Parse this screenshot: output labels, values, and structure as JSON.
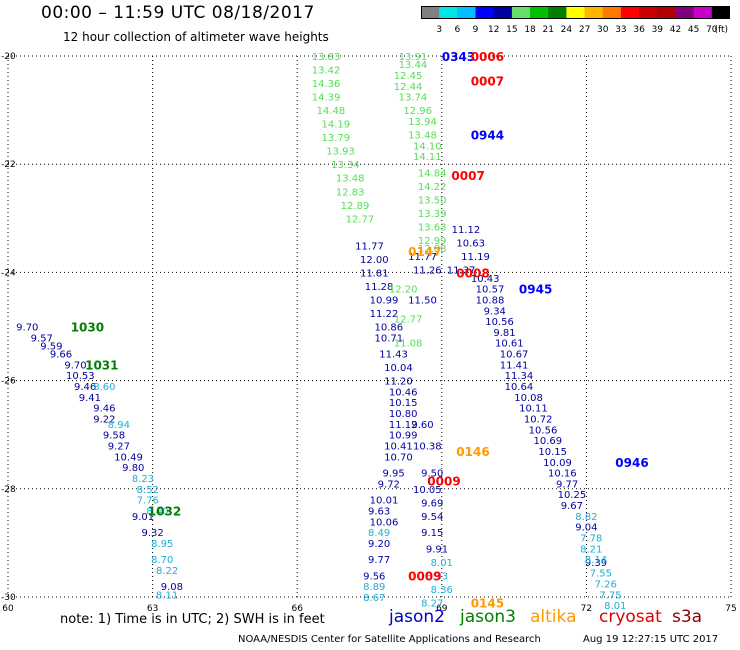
{
  "title": "00:00 – 11:59 UTC 08/18/2017",
  "subtitle": "12 hour collection of altimeter wave heights",
  "colorbar": {
    "unit": "(ft)",
    "labels": [
      "3",
      "6",
      "9",
      "12",
      "15",
      "18",
      "21",
      "24",
      "27",
      "30",
      "33",
      "36",
      "39",
      "42",
      "45",
      "70"
    ],
    "colors": [
      "#808080",
      "#00e6e6",
      "#00bfff",
      "#0000ff",
      "#0000a0",
      "#66e066",
      "#00c000",
      "#008000",
      "#ffff00",
      "#ffb400",
      "#ff7800",
      "#ff0000",
      "#c80000",
      "#b40000",
      "#800080",
      "#c800c8",
      "#000000"
    ]
  },
  "note": "note: 1) Time is in UTC; 2) SWH is in feet",
  "missions": [
    {
      "name": "jason2",
      "color": "#0000c8"
    },
    {
      "name": "jason3",
      "color": "#008000"
    },
    {
      "name": "altika",
      "color": "#ff9900"
    },
    {
      "name": "cryosat",
      "color": "#e00000"
    },
    {
      "name": "s3a",
      "color": "#8b0000"
    }
  ],
  "credit": "NOAA/NESDIS Center for Satellite Applications and Research",
  "generated": "Aug 19 12:27:15 UTC 2017",
  "chart_data": {
    "type": "scatter",
    "title": "00:00 – 11:59 UTC 08/18/2017",
    "subtitle": "12 hour collection of altimeter wave heights",
    "x_ticks": [
      60,
      63,
      66,
      69,
      72,
      75
    ],
    "y_ticks": [
      -20,
      -22,
      -24,
      -26,
      -28,
      -30
    ],
    "xlim": [
      60,
      75
    ],
    "ylim": [
      -30,
      -20
    ],
    "grid": true,
    "series": [
      {
        "name": "track-left-a",
        "color": "#0000a0",
        "points": [
          [
            60.4,
            -25.0,
            "9.70"
          ],
          [
            60.7,
            -25.2,
            "9.57"
          ],
          [
            60.9,
            -25.35,
            "9.59"
          ],
          [
            61.1,
            -25.5,
            "9.66"
          ],
          [
            61.4,
            -25.7,
            "9.70"
          ],
          [
            61.5,
            -25.9,
            "10.53"
          ],
          [
            61.6,
            -26.1,
            "9.46"
          ],
          [
            61.7,
            -26.3,
            "9.41"
          ],
          [
            62.0,
            -26.5,
            "9.46"
          ],
          [
            62.0,
            -26.7,
            "9.22"
          ],
          [
            62.2,
            -27.0,
            "9.58"
          ],
          [
            62.3,
            -27.2,
            "9.27"
          ],
          [
            62.5,
            -27.4,
            "10.49"
          ],
          [
            62.6,
            -27.6,
            "9.80"
          ],
          [
            62.8,
            -28.5,
            "9.01"
          ],
          [
            63.0,
            -28.8,
            "9.32"
          ],
          [
            63.4,
            -29.8,
            "9.08"
          ]
        ]
      },
      {
        "name": "track-left-b",
        "color": "#1ab0d8",
        "points": [
          [
            62.0,
            -26.1,
            "8.60"
          ],
          [
            62.3,
            -26.8,
            "8.94"
          ],
          [
            62.8,
            -27.8,
            "8.23"
          ],
          [
            62.9,
            -28.0,
            "8.52"
          ],
          [
            62.9,
            -28.2,
            "7.76"
          ],
          [
            63.1,
            -28.4,
            "8.40"
          ],
          [
            63.2,
            -29.0,
            "8.95"
          ],
          [
            63.2,
            -29.3,
            "8.70"
          ],
          [
            63.3,
            -29.5,
            "8.22"
          ],
          [
            63.3,
            -29.95,
            "8.11"
          ]
        ]
      },
      {
        "name": "track-mid-a",
        "color": "#55dd55",
        "points": [
          [
            66.6,
            -20.0,
            "13.83"
          ],
          [
            66.6,
            -20.25,
            "13.42"
          ],
          [
            66.6,
            -20.5,
            "14.36"
          ],
          [
            66.6,
            -20.75,
            "14.39"
          ],
          [
            66.7,
            -21.0,
            "14.48"
          ],
          [
            66.8,
            -21.25,
            "14.19"
          ],
          [
            66.8,
            -21.5,
            "13.79"
          ],
          [
            66.9,
            -21.75,
            "13.93"
          ],
          [
            67.0,
            -22.0,
            "13.34"
          ],
          [
            67.1,
            -22.25,
            "13.48"
          ],
          [
            67.1,
            -22.5,
            "12.83"
          ],
          [
            67.2,
            -22.75,
            "12.89"
          ],
          [
            67.3,
            -23.0,
            "12.77"
          ]
        ]
      },
      {
        "name": "track-mid-b",
        "color": "#0000a0",
        "points": [
          [
            67.5,
            -23.5,
            "11.77"
          ],
          [
            67.6,
            -23.75,
            "12.00"
          ],
          [
            67.6,
            -24.0,
            "11.81"
          ],
          [
            67.7,
            -24.25,
            "11.28"
          ],
          [
            67.8,
            -24.5,
            "10.99"
          ],
          [
            67.8,
            -24.75,
            "11.22"
          ],
          [
            67.9,
            -25.0,
            "10.86"
          ],
          [
            67.9,
            -25.2,
            "10.71"
          ],
          [
            68.0,
            -25.5,
            "11.43"
          ],
          [
            68.1,
            -25.75,
            "10.04"
          ],
          [
            68.1,
            -26.0,
            "11.20"
          ],
          [
            68.2,
            -26.2,
            "10.46"
          ],
          [
            68.2,
            -26.4,
            "10.15"
          ],
          [
            68.2,
            -26.6,
            "10.80"
          ],
          [
            68.2,
            -26.8,
            "11.12"
          ],
          [
            68.2,
            -27.0,
            "10.99"
          ],
          [
            68.1,
            -27.2,
            "10.41"
          ],
          [
            68.1,
            -27.4,
            "10.70"
          ],
          [
            68.0,
            -27.7,
            "9.95"
          ],
          [
            67.9,
            -27.9,
            "9.72"
          ],
          [
            67.8,
            -28.2,
            "10.01"
          ],
          [
            67.7,
            -28.4,
            "9.63"
          ],
          [
            67.8,
            -28.6,
            "10.06"
          ],
          [
            67.7,
            -29.0,
            "9.20"
          ],
          [
            67.7,
            -29.3,
            "9.77"
          ],
          [
            67.6,
            -29.6,
            "9.56"
          ]
        ]
      },
      {
        "name": "track-mid-c",
        "color": "#1ab0d8",
        "points": [
          [
            67.7,
            -28.8,
            "8.49"
          ],
          [
            67.6,
            -29.8,
            "8.89"
          ],
          [
            67.6,
            -30.0,
            "8.67"
          ]
        ]
      },
      {
        "name": "track-right-a",
        "color": "#55dd55",
        "points": [
          [
            68.4,
            -20.0,
            "13.91"
          ],
          [
            68.4,
            -20.15,
            "13.44"
          ],
          [
            68.3,
            -20.35,
            "12.45"
          ],
          [
            68.3,
            -20.55,
            "12.44"
          ],
          [
            68.4,
            -20.75,
            "13.74"
          ],
          [
            68.5,
            -21.0,
            "12.96"
          ],
          [
            68.6,
            -21.2,
            "13.94"
          ],
          [
            68.6,
            -21.45,
            "13.48"
          ],
          [
            68.7,
            -21.65,
            "14.10"
          ],
          [
            68.7,
            -21.85,
            "14.11"
          ],
          [
            68.8,
            -22.15,
            "14.84"
          ],
          [
            68.8,
            -22.4,
            "14.22"
          ],
          [
            68.8,
            -22.65,
            "13.50"
          ],
          [
            68.8,
            -22.9,
            "13.39"
          ],
          [
            68.8,
            -23.15,
            "13.63"
          ],
          [
            68.8,
            -23.4,
            "12.99"
          ],
          [
            68.8,
            -23.55,
            "12.88"
          ],
          [
            68.2,
            -24.3,
            "12.20"
          ],
          [
            68.3,
            -24.85,
            "12.77"
          ],
          [
            68.3,
            -25.3,
            "11.08"
          ]
        ]
      },
      {
        "name": "track-right-b",
        "color": "#0000a0",
        "points": [
          [
            69.5,
            -23.2,
            "11.12"
          ],
          [
            69.6,
            -23.45,
            "10.63"
          ],
          [
            69.7,
            -23.7,
            "11.19"
          ],
          [
            69.4,
            -23.95,
            "11.37"
          ],
          [
            69.9,
            -24.1,
            "10.43"
          ],
          [
            70.0,
            -24.3,
            "10.57"
          ],
          [
            70.0,
            -24.5,
            "10.88"
          ],
          [
            70.1,
            -24.7,
            "9.34"
          ],
          [
            70.2,
            -24.9,
            "10.56"
          ],
          [
            70.3,
            -25.1,
            "9.81"
          ],
          [
            70.4,
            -25.3,
            "10.61"
          ],
          [
            70.5,
            -25.5,
            "10.67"
          ],
          [
            70.5,
            -25.7,
            "11.41"
          ],
          [
            70.6,
            -25.9,
            "11.34"
          ],
          [
            70.6,
            -26.1,
            "10.64"
          ],
          [
            70.8,
            -26.3,
            "10.08"
          ],
          [
            70.9,
            -26.5,
            "10.11"
          ],
          [
            71.0,
            -26.7,
            "10.72"
          ],
          [
            71.1,
            -26.9,
            "10.56"
          ],
          [
            71.2,
            -27.1,
            "10.69"
          ],
          [
            71.3,
            -27.3,
            "10.15"
          ],
          [
            71.4,
            -27.5,
            "10.09"
          ],
          [
            71.5,
            -27.7,
            "10.16"
          ],
          [
            71.6,
            -27.9,
            "9.77"
          ],
          [
            71.7,
            -28.1,
            "10.25"
          ],
          [
            71.7,
            -28.3,
            "9.67"
          ],
          [
            72.0,
            -28.7,
            "9.04"
          ],
          [
            72.2,
            -29.35,
            "9.39"
          ]
        ]
      },
      {
        "name": "track-right-c",
        "color": "#1ab0d8",
        "points": [
          [
            72.0,
            -28.5,
            "8.82"
          ],
          [
            72.1,
            -28.9,
            "7.78"
          ],
          [
            72.1,
            -29.1,
            "8.21"
          ],
          [
            72.2,
            -29.3,
            "8.14"
          ],
          [
            72.3,
            -29.55,
            "7.55"
          ],
          [
            72.4,
            -29.75,
            "7.26"
          ],
          [
            72.5,
            -29.95,
            "7.75"
          ],
          [
            72.6,
            -30.15,
            "8.01"
          ]
        ]
      },
      {
        "name": "track-center-a",
        "color": "#0000a0",
        "points": [
          [
            68.6,
            -23.7,
            "11.77"
          ],
          [
            68.7,
            -23.95,
            "11.26"
          ],
          [
            68.6,
            -24.5,
            "11.50"
          ],
          [
            68.6,
            -26.8,
            "9.60"
          ],
          [
            68.7,
            -27.2,
            "10.38"
          ],
          [
            68.8,
            -27.7,
            "9.50"
          ],
          [
            68.7,
            -28.0,
            "10.05"
          ],
          [
            68.8,
            -28.25,
            "9.69"
          ],
          [
            68.8,
            -28.5,
            "9.54"
          ],
          [
            68.8,
            -28.8,
            "9.15"
          ],
          [
            68.9,
            -29.1,
            "9.91"
          ]
        ]
      },
      {
        "name": "track-center-b",
        "color": "#1ab0d8",
        "points": [
          [
            69.0,
            -29.35,
            "8.01"
          ],
          [
            68.9,
            -29.6,
            "8.33"
          ],
          [
            69.0,
            -29.85,
            "8.36"
          ],
          [
            68.8,
            -30.1,
            "8.27"
          ]
        ]
      }
    ],
    "time_labels": [
      {
        "x": 69.0,
        "y": -20.0,
        "text": "0343",
        "color": "#0000ff"
      },
      {
        "x": 69.6,
        "y": -20.0,
        "text": "0006",
        "color": "#ff0000"
      },
      {
        "x": 69.6,
        "y": -20.45,
        "text": "0007",
        "color": "#ff0000"
      },
      {
        "x": 69.6,
        "y": -21.45,
        "text": "0944",
        "color": "#0000ff"
      },
      {
        "x": 69.2,
        "y": -22.2,
        "text": "0007",
        "color": "#ff0000"
      },
      {
        "x": 68.3,
        "y": -23.6,
        "text": "0147",
        "color": "#ff9900"
      },
      {
        "x": 69.3,
        "y": -24.0,
        "text": "0008",
        "color": "#ff0000"
      },
      {
        "x": 70.6,
        "y": -24.3,
        "text": "0945",
        "color": "#0000ff"
      },
      {
        "x": 61.3,
        "y": -25.0,
        "text": "1030",
        "color": "#008000"
      },
      {
        "x": 61.6,
        "y": -25.7,
        "text": "1031",
        "color": "#008000"
      },
      {
        "x": 69.3,
        "y": -27.3,
        "text": "0146",
        "color": "#ff9900"
      },
      {
        "x": 68.7,
        "y": -27.85,
        "text": "0009",
        "color": "#ff0000"
      },
      {
        "x": 72.6,
        "y": -27.5,
        "text": "0946",
        "color": "#0000ff"
      },
      {
        "x": 62.9,
        "y": -28.4,
        "text": "1032",
        "color": "#008000"
      },
      {
        "x": 68.3,
        "y": -29.6,
        "text": "0009",
        "color": "#ff0000"
      },
      {
        "x": 69.6,
        "y": -30.1,
        "text": "0145",
        "color": "#ff9900"
      }
    ]
  }
}
